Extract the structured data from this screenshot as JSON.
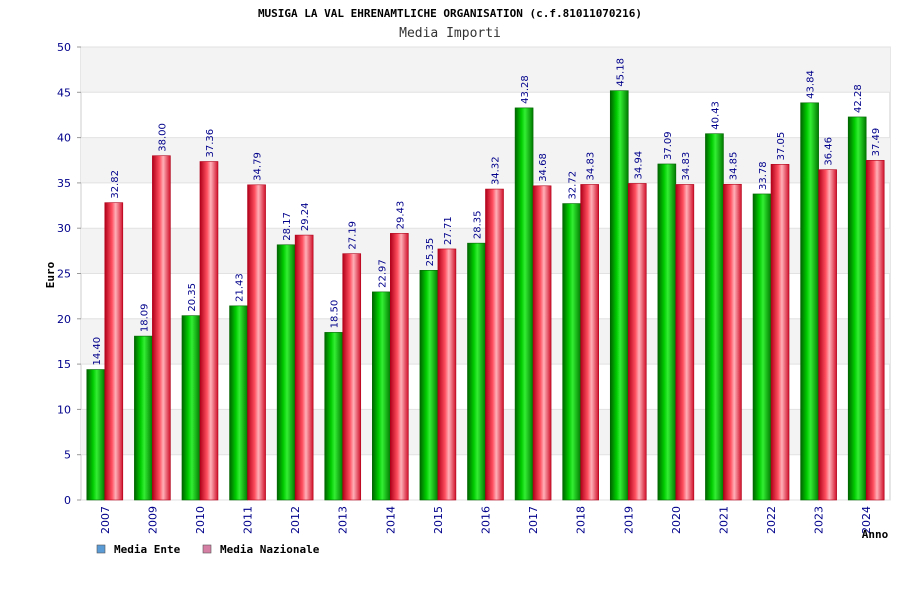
{
  "chart_data": {
    "type": "bar",
    "title": "MUSIGA LA VAL EHRENAMTLICHE ORGANISATION (c.f.81011070216)",
    "subtitle": "Media Importi",
    "ylabel": "Euro",
    "xlabel": "Anno",
    "ylim": [
      0,
      50
    ],
    "yticks": [
      0,
      5,
      10,
      15,
      20,
      25,
      30,
      35,
      40,
      45,
      50
    ],
    "grid": true,
    "legend_position": "bottom-left",
    "categories": [
      "2007",
      "2009",
      "2010",
      "2011",
      "2012",
      "2013",
      "2014",
      "2015",
      "2016",
      "2017",
      "2018",
      "2019",
      "2020",
      "2021",
      "2022",
      "2023",
      "2024"
    ],
    "series": [
      {
        "name": "Media Ente",
        "color": "#00b000",
        "legend_color": "#5b9bd5",
        "values": [
          14.4,
          18.09,
          20.35,
          21.43,
          28.17,
          18.5,
          22.97,
          25.35,
          28.35,
          43.28,
          32.72,
          45.18,
          37.09,
          40.43,
          33.78,
          43.84,
          42.28
        ]
      },
      {
        "name": "Media Nazionale",
        "color": "#e8102a",
        "legend_color": "#d67fa5",
        "values": [
          32.82,
          38.0,
          37.36,
          34.79,
          29.24,
          27.19,
          29.43,
          27.71,
          34.32,
          34.68,
          34.83,
          34.94,
          34.83,
          34.85,
          37.05,
          36.46,
          37.49
        ]
      }
    ]
  }
}
